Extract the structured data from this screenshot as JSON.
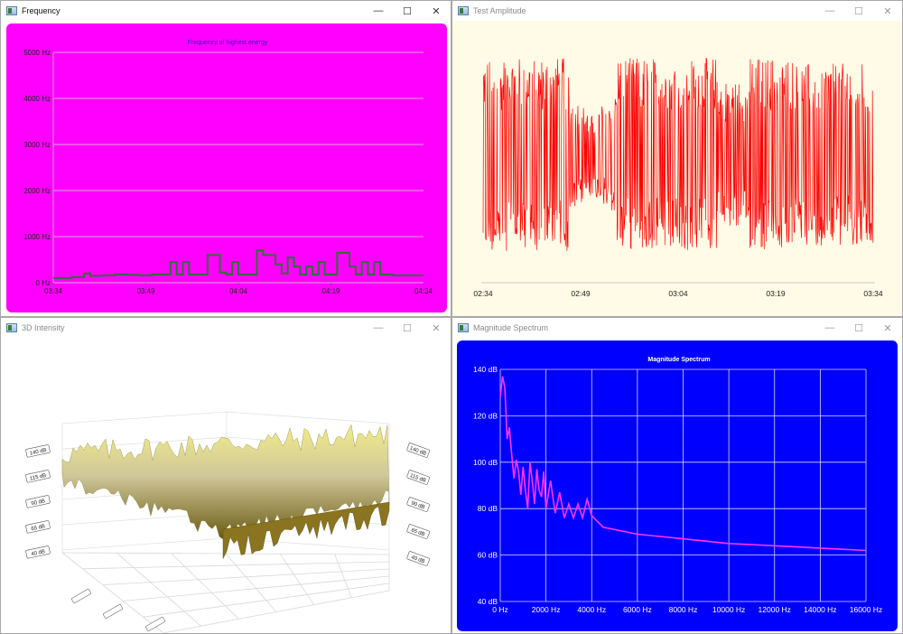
{
  "windows": {
    "frequency": {
      "title": "Frequency",
      "controls": {
        "minimize": "—",
        "maximize": "☐",
        "close": "✕"
      },
      "chart_title": "Frequency of highest energy",
      "colors": {
        "background": "#ff00ff",
        "line": "#2d6e3a"
      }
    },
    "amplitude": {
      "title": "Test Amplitude",
      "controls": {
        "minimize": "—",
        "maximize": "☐",
        "close": "✕"
      },
      "colors": {
        "background": "#fffbe6",
        "signal": "#ff0000"
      }
    },
    "intensity": {
      "title": "3D Intensity",
      "controls": {
        "minimize": "—",
        "maximize": "☐",
        "close": "✕"
      },
      "left_axis_labels": [
        "140 dB",
        "115 dB",
        "90 dB",
        "65 dB",
        "40 dB"
      ],
      "right_axis_labels": [
        "140 dB",
        "115 dB",
        "90 dB",
        "65 dB",
        "40 dB"
      ],
      "colors": {
        "surface_high": "#e6df6a",
        "surface_mid": "#c9c0a8",
        "surface_low": "#6b5a12"
      }
    },
    "spectrum": {
      "title": "Magnitude Spectrum",
      "controls": {
        "minimize": "—",
        "maximize": "☐",
        "close": "✕"
      },
      "chart_title": "Magnitude Spectrum",
      "colors": {
        "background": "#0000ff",
        "line": "#ff33ff"
      }
    }
  },
  "chart_data": [
    {
      "type": "line",
      "title": "Frequency of highest energy",
      "y_ticks": [
        "0 Hz",
        "1000 Hz",
        "2000 Hz",
        "3000 Hz",
        "4000 Hz",
        "5000 Hz"
      ],
      "x_ticks": [
        "03:34",
        "03:49",
        "04:04",
        "04:19",
        "04:34"
      ],
      "ylim": [
        0,
        5000
      ],
      "xlim": [
        0,
        60
      ],
      "grid": true,
      "step": true,
      "x": [
        0,
        3,
        5,
        6,
        8,
        10,
        12,
        14,
        16,
        18,
        19,
        20,
        21,
        22,
        23,
        24,
        25,
        26,
        27,
        28,
        29,
        30,
        31,
        32,
        33,
        34,
        35,
        36,
        37,
        38,
        39,
        40,
        41,
        42,
        43,
        44,
        45,
        46,
        47,
        48,
        49,
        50,
        51,
        52,
        53,
        54,
        55,
        56,
        58,
        60
      ],
      "y": [
        100,
        120,
        200,
        150,
        160,
        180,
        170,
        160,
        180,
        180,
        450,
        180,
        450,
        180,
        180,
        180,
        600,
        600,
        220,
        180,
        450,
        180,
        180,
        180,
        700,
        600,
        600,
        400,
        200,
        550,
        350,
        180,
        350,
        180,
        450,
        180,
        180,
        650,
        650,
        350,
        180,
        450,
        180,
        450,
        180,
        180,
        160,
        160,
        160,
        160
      ]
    },
    {
      "type": "line",
      "title": "",
      "x_ticks": [
        "02:34",
        "02:49",
        "03:04",
        "03:19",
        "03:34"
      ],
      "grid": false,
      "description_series": "waveform"
    },
    {
      "type": "line",
      "title": "Magnitude Spectrum",
      "y_ticks": [
        "40 dB",
        "60 dB",
        "80 dB",
        "100 dB",
        "120 dB",
        "140 dB"
      ],
      "x_ticks": [
        "0 Hz",
        "2000 Hz",
        "4000 Hz",
        "6000 Hz",
        "8000 Hz",
        "10000 Hz",
        "12000 Hz",
        "14000 Hz",
        "16000 Hz"
      ],
      "ylim": [
        40,
        140
      ],
      "xlim": [
        0,
        16000
      ],
      "grid": true,
      "x": [
        0,
        100,
        200,
        300,
        400,
        500,
        600,
        700,
        800,
        900,
        1000,
        1100,
        1200,
        1300,
        1400,
        1500,
        1600,
        1700,
        1800,
        1900,
        2000,
        2200,
        2400,
        2600,
        2800,
        3000,
        3200,
        3400,
        3600,
        3800,
        4000,
        4500,
        5000,
        6000,
        7000,
        8000,
        9000,
        10000,
        11000,
        12000,
        13000,
        14000,
        15000,
        16000
      ],
      "y": [
        128,
        137,
        132,
        110,
        115,
        103,
        93,
        101,
        96,
        86,
        98,
        88,
        80,
        100,
        92,
        82,
        97,
        88,
        85,
        96,
        80,
        92,
        78,
        87,
        76,
        82,
        76,
        82,
        76,
        84,
        77,
        72,
        71,
        69,
        68,
        67,
        66,
        65,
        64.5,
        64,
        63.5,
        63,
        62.5,
        62
      ]
    }
  ]
}
